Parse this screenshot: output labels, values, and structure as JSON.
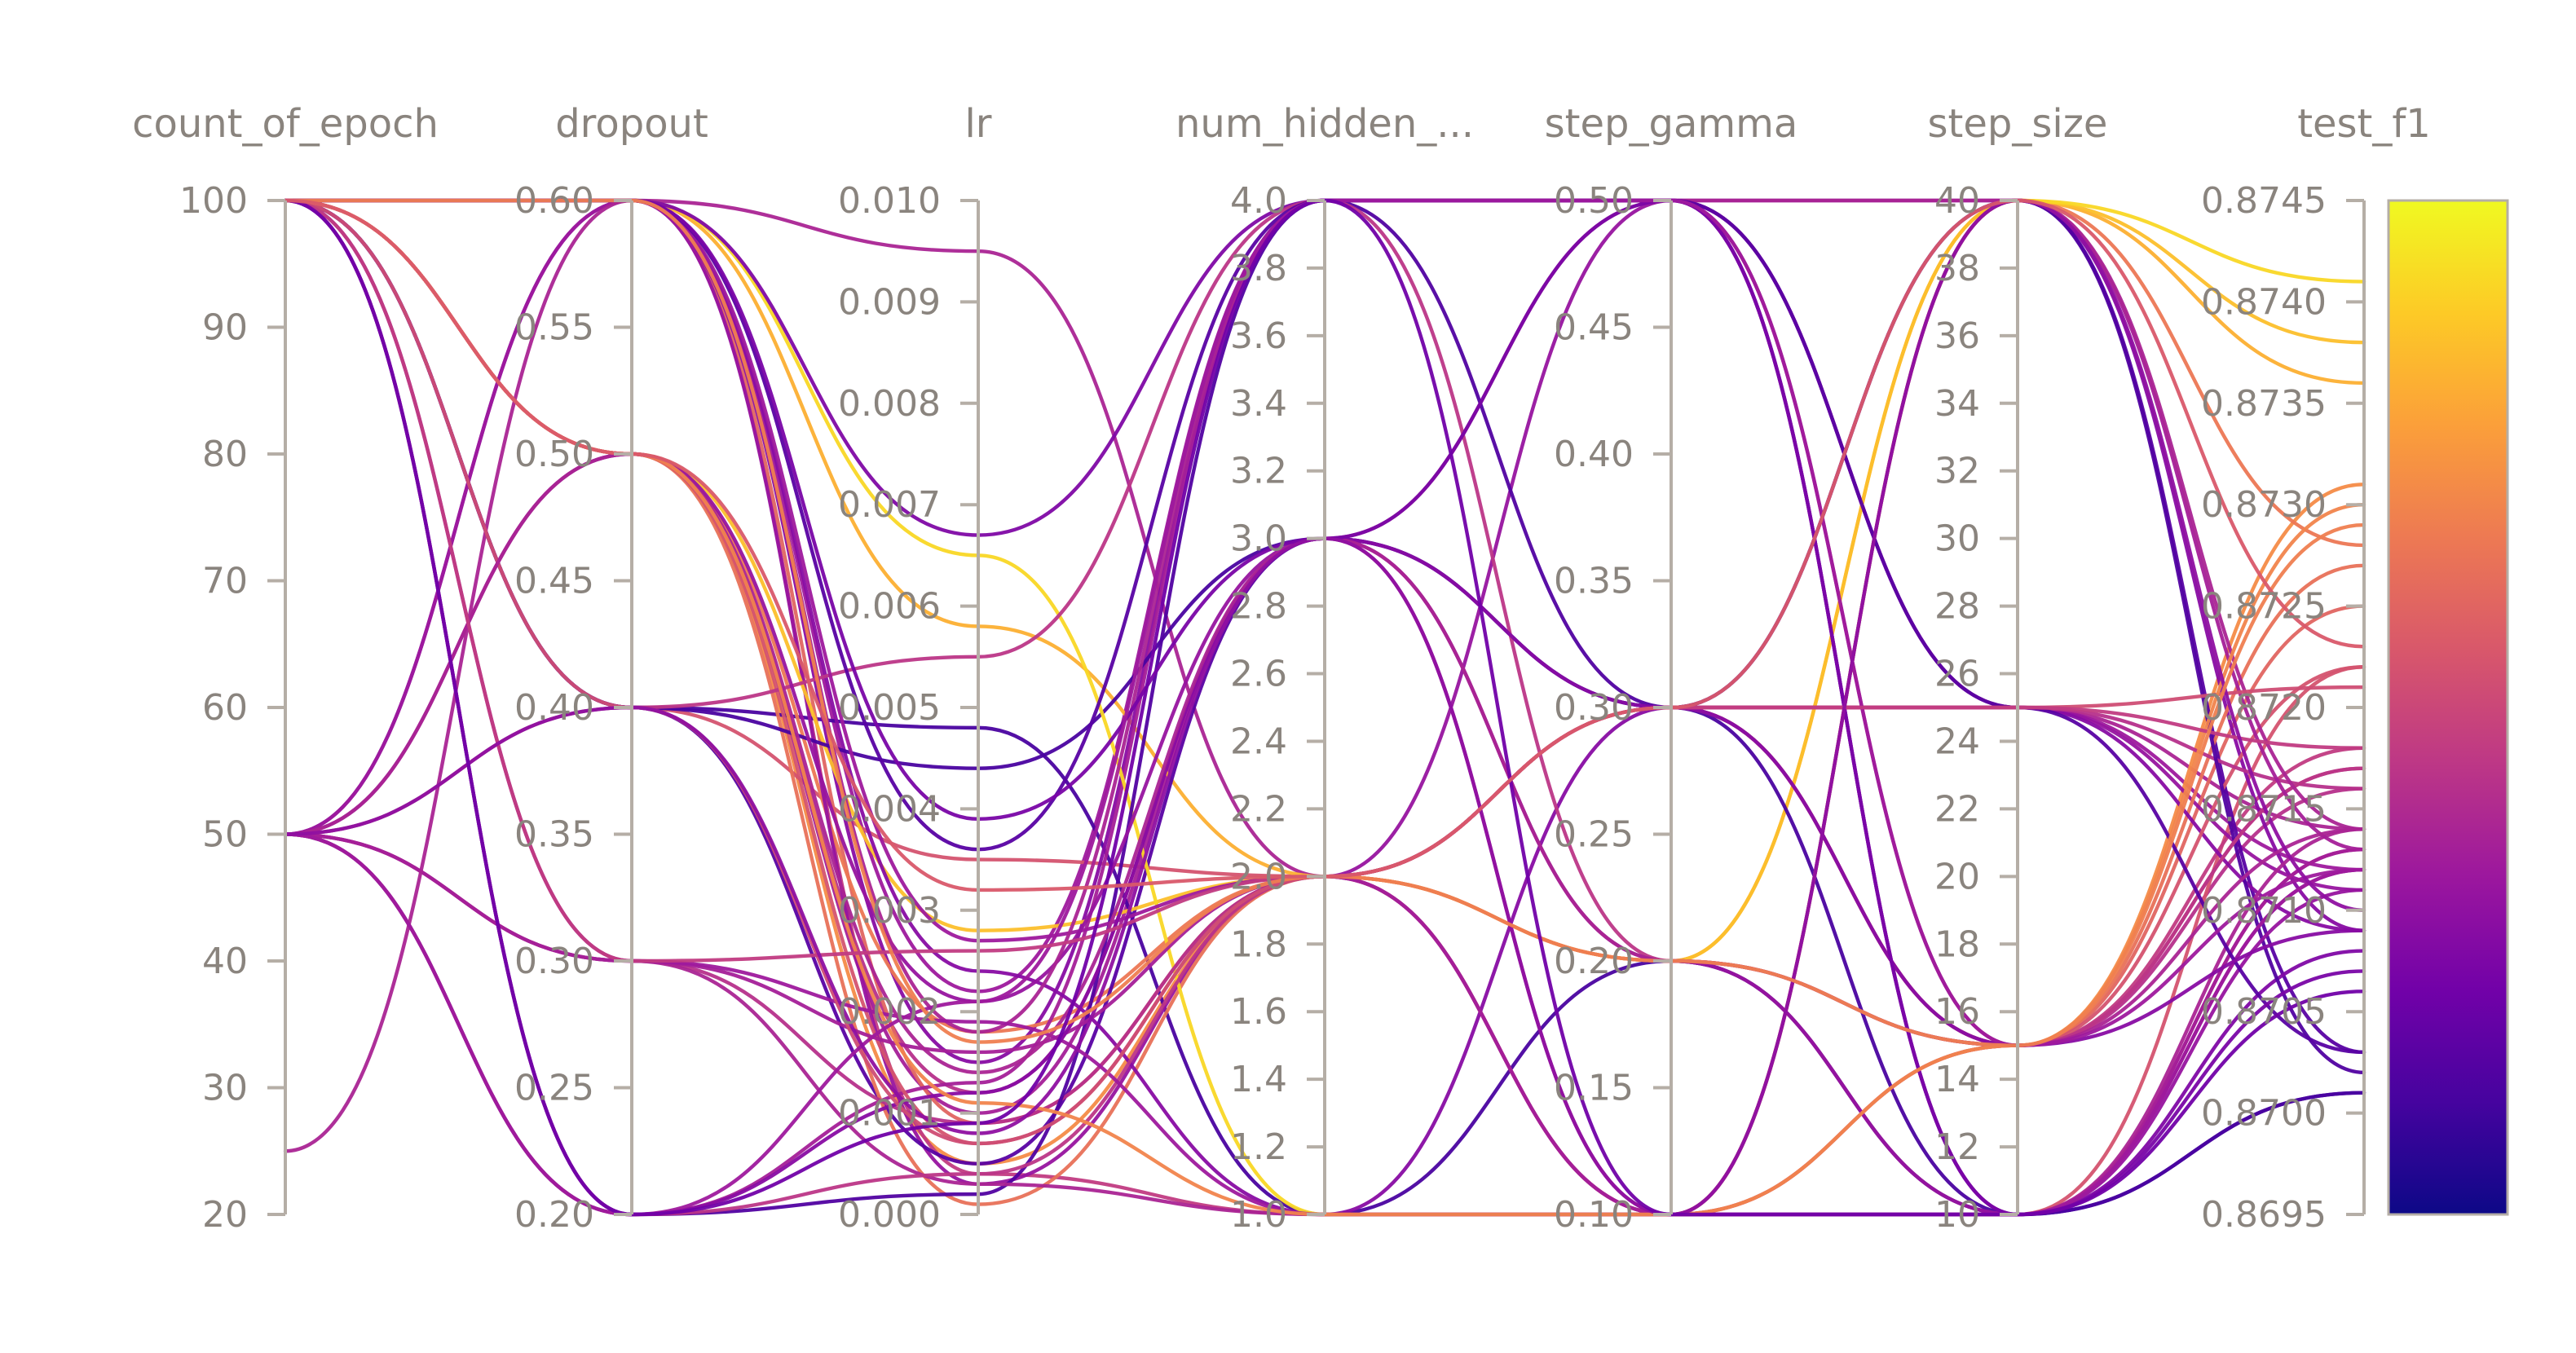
{
  "chart_data": {
    "type": "parallel_coordinates",
    "axes": [
      {
        "name": "count_of_epoch",
        "range": [
          20,
          100
        ],
        "ticks": [
          "100",
          "90",
          "80",
          "70",
          "60",
          "50",
          "40",
          "30",
          "20"
        ]
      },
      {
        "name": "dropout",
        "range": [
          0.2,
          0.6
        ],
        "ticks": [
          "0.60",
          "0.55",
          "0.50",
          "0.45",
          "0.40",
          "0.35",
          "0.30",
          "0.25",
          "0.20"
        ]
      },
      {
        "name": "lr",
        "range": [
          0,
          0.01
        ],
        "ticks": [
          "0.010",
          "0.009",
          "0.008",
          "0.007",
          "0.006",
          "0.005",
          "0.004",
          "0.003",
          "0.002",
          "0.001",
          "0.000"
        ]
      },
      {
        "name": "num_hidden_...",
        "range": [
          1,
          4
        ],
        "ticks": [
          "4.0",
          "3.8",
          "3.6",
          "3.4",
          "3.2",
          "3.0",
          "2.8",
          "2.6",
          "2.4",
          "2.2",
          "2.0",
          "1.8",
          "1.6",
          "1.4",
          "1.2",
          "1.0"
        ]
      },
      {
        "name": "step_gamma",
        "range": [
          0.1,
          0.5
        ],
        "ticks": [
          "0.50",
          "0.45",
          "0.40",
          "0.35",
          "0.30",
          "0.25",
          "0.20",
          "0.15",
          "0.10"
        ]
      },
      {
        "name": "step_size",
        "range": [
          10,
          40
        ],
        "ticks": [
          "40",
          "38",
          "36",
          "34",
          "32",
          "30",
          "28",
          "26",
          "24",
          "22",
          "20",
          "18",
          "16",
          "14",
          "12",
          "10"
        ]
      },
      {
        "name": "test_f1",
        "range": [
          0.8695,
          0.8745
        ],
        "ticks": [
          "0.8745",
          "0.8740",
          "0.8735",
          "0.8730",
          "0.8725",
          "0.8720",
          "0.8715",
          "0.8710",
          "0.8705",
          "0.8700",
          "0.8695"
        ]
      }
    ],
    "colorscale": {
      "range": [
        0.8695,
        0.8745
      ],
      "stops": [
        "#0d0887",
        "#46039f",
        "#7201a8",
        "#9c179e",
        "#bd3786",
        "#d8576b",
        "#ed7953",
        "#fb9f3a",
        "#fdca26",
        "#f0f921"
      ]
    },
    "runs": [
      [
        100,
        0.6,
        0.0095,
        2.0,
        0.3,
        25,
        0.8714
      ],
      [
        100,
        0.6,
        0.0022,
        4.0,
        0.5,
        25,
        0.8712
      ],
      [
        100,
        0.5,
        0.0012,
        3.0,
        0.5,
        15,
        0.8716
      ],
      [
        100,
        0.5,
        0.0005,
        2.0,
        0.3,
        15,
        0.8731
      ],
      [
        100,
        0.4,
        0.0035,
        2.0,
        0.2,
        10,
        0.8722
      ],
      [
        100,
        0.6,
        0.0004,
        1.0,
        0.1,
        15,
        0.8718
      ],
      [
        100,
        0.5,
        0.001,
        3.0,
        0.1,
        10,
        0.8713
      ],
      [
        100,
        0.6,
        0.0058,
        2.0,
        0.2,
        40,
        0.8736
      ],
      [
        100,
        0.4,
        0.0048,
        1.0,
        0.2,
        10,
        0.8701
      ],
      [
        100,
        0.6,
        0.0009,
        2.0,
        0.3,
        15,
        0.8725
      ],
      [
        100,
        0.6,
        0.0015,
        4.0,
        0.5,
        40,
        0.8709
      ],
      [
        100,
        0.5,
        0.0018,
        2.0,
        0.1,
        40,
        0.8728
      ],
      [
        100,
        0.6,
        0.0003,
        2.0,
        0.5,
        25,
        0.8711
      ],
      [
        100,
        0.4,
        0.0005,
        3.0,
        0.3,
        40,
        0.8703
      ],
      [
        100,
        0.5,
        0.0028,
        2.0,
        0.2,
        40,
        0.8738
      ],
      [
        100,
        0.2,
        0.0013,
        4.0,
        0.5,
        10,
        0.8713
      ],
      [
        100,
        0.5,
        0.0001,
        2.0,
        0.2,
        15,
        0.8727
      ],
      [
        100,
        0.6,
        0.0024,
        1.0,
        0.3,
        25,
        0.8709
      ],
      [
        100,
        0.5,
        0.0007,
        2.0,
        0.1,
        15,
        0.8722
      ],
      [
        100,
        0.4,
        0.0044,
        3.0,
        0.3,
        10,
        0.8701
      ],
      [
        100,
        0.6,
        0.0065,
        1.0,
        0.1,
        40,
        0.8741
      ],
      [
        50,
        0.6,
        0.0067,
        4.0,
        0.5,
        10,
        0.8708
      ],
      [
        50,
        0.3,
        0.0009,
        2.0,
        0.3,
        25,
        0.8716
      ],
      [
        50,
        0.2,
        0.0002,
        4.0,
        0.3,
        40,
        0.8702
      ],
      [
        50,
        0.4,
        0.0055,
        4.0,
        0.2,
        15,
        0.8717
      ],
      [
        50,
        0.6,
        0.0027,
        2.0,
        0.1,
        10,
        0.8712
      ],
      [
        50,
        0.3,
        0.0003,
        1.0,
        0.1,
        10,
        0.8714
      ],
      [
        50,
        0.5,
        0.0021,
        3.0,
        0.2,
        10,
        0.8711
      ],
      [
        50,
        0.2,
        0.0004,
        2.0,
        0.3,
        15,
        0.8717
      ],
      [
        50,
        0.3,
        0.0016,
        2.0,
        0.1,
        40,
        0.8713
      ],
      [
        25,
        0.6,
        0.0018,
        4.0,
        0.5,
        40,
        0.8714
      ],
      [
        100,
        0.3,
        0.0019,
        1.0,
        0.1,
        10,
        0.8712
      ],
      [
        100,
        0.6,
        0.0036,
        4.0,
        0.5,
        25,
        0.8703
      ],
      [
        100,
        0.2,
        0.0012,
        3.0,
        0.3,
        15,
        0.8709
      ],
      [
        100,
        0.4,
        0.0007,
        2.0,
        0.3,
        25,
        0.8721
      ],
      [
        50,
        0.5,
        0.0014,
        3.0,
        0.2,
        15,
        0.8714
      ],
      [
        100,
        0.6,
        0.0039,
        3.0,
        0.5,
        10,
        0.8707
      ],
      [
        100,
        0.5,
        0.0011,
        1.0,
        0.1,
        15,
        0.873
      ],
      [
        50,
        0.2,
        0.0021,
        4.0,
        0.5,
        15,
        0.8712
      ],
      [
        100,
        0.3,
        0.0026,
        2.0,
        0.3,
        25,
        0.8718
      ],
      [
        50,
        0.4,
        0.0008,
        3.0,
        0.1,
        40,
        0.871
      ],
      [
        100,
        0.6,
        0.0017,
        2.0,
        0.2,
        15,
        0.8729
      ],
      [
        100,
        0.2,
        0.0009,
        4.0,
        0.1,
        10,
        0.8706
      ],
      [
        100,
        0.5,
        0.0032,
        2.0,
        0.3,
        40,
        0.8723
      ]
    ],
    "title": "",
    "legend": "colorbar-right"
  }
}
